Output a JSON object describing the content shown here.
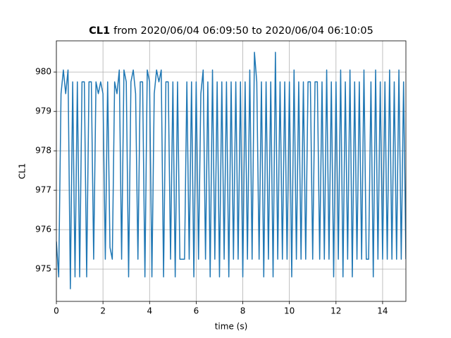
{
  "chart_data": {
    "type": "line",
    "title": {
      "bold": "CL1",
      "rest": "from 2020/06/04 06:09:50 to 2020/06/04 06:10:05"
    },
    "xlabel": "time (s)",
    "ylabel": "CL1",
    "xlim": [
      0,
      15
    ],
    "ylim": [
      974.18,
      980.79
    ],
    "xticks": [
      0,
      2,
      4,
      6,
      8,
      10,
      12,
      14
    ],
    "yticks": [
      975,
      976,
      977,
      978,
      979,
      980
    ],
    "grid": true,
    "series": [
      {
        "name": "CL1",
        "color": "#1f77b4",
        "x": [
          0,
          0.1,
          0.2,
          0.3,
          0.4,
          0.5,
          0.6,
          0.7,
          0.8,
          0.9,
          1,
          1.1,
          1.2,
          1.3,
          1.4,
          1.5,
          1.6,
          1.7,
          1.8,
          1.9,
          2,
          2.1,
          2.2,
          2.3,
          2.4,
          2.5,
          2.6,
          2.7,
          2.8,
          2.9,
          3,
          3.1,
          3.2,
          3.3,
          3.4,
          3.5,
          3.6,
          3.7,
          3.8,
          3.9,
          4,
          4.1,
          4.2,
          4.3,
          4.4,
          4.5,
          4.6,
          4.7,
          4.8,
          4.9,
          5,
          5.1,
          5.2,
          5.3,
          5.4,
          5.5,
          5.6,
          5.7,
          5.8,
          5.9,
          6,
          6.1,
          6.2,
          6.3,
          6.4,
          6.5,
          6.6,
          6.7,
          6.8,
          6.9,
          7,
          7.1,
          7.2,
          7.3,
          7.4,
          7.5,
          7.6,
          7.7,
          7.8,
          7.9,
          8,
          8.1,
          8.2,
          8.3,
          8.4,
          8.5,
          8.6,
          8.7,
          8.8,
          8.9,
          9,
          9.1,
          9.2,
          9.3,
          9.4,
          9.5,
          9.6,
          9.7,
          9.8,
          9.9,
          10,
          10.1,
          10.2,
          10.3,
          10.4,
          10.5,
          10.6,
          10.7,
          10.8,
          10.9,
          11,
          11.1,
          11.2,
          11.3,
          11.4,
          11.5,
          11.6,
          11.7,
          11.8,
          11.9,
          12,
          12.1,
          12.2,
          12.3,
          12.4,
          12.5,
          12.6,
          12.7,
          12.8,
          12.9,
          13,
          13.1,
          13.2,
          13.3,
          13.4,
          13.5,
          13.6,
          13.7,
          13.8,
          13.9,
          14,
          14.1,
          14.2,
          14.3,
          14.4,
          14.5,
          14.6,
          14.7,
          14.8,
          14.9,
          15
        ],
        "values": [
          975.7,
          974.8,
          979.45,
          980.05,
          979.45,
          980.05,
          974.5,
          979.75,
          974.8,
          979.75,
          974.8,
          979.75,
          979.75,
          974.8,
          979.75,
          979.75,
          975.25,
          979.75,
          979.45,
          979.75,
          979.45,
          975.25,
          979.75,
          975.55,
          975.25,
          979.75,
          979.45,
          980.05,
          975.25,
          980.05,
          979.75,
          974.8,
          979.75,
          980.05,
          979.45,
          975.25,
          979.75,
          979.75,
          974.8,
          980.05,
          979.75,
          974.8,
          979.45,
          980.05,
          979.75,
          980.05,
          974.8,
          979.75,
          979.75,
          975.25,
          979.75,
          974.8,
          979.75,
          975.25,
          975.25,
          975.25,
          979.75,
          975.25,
          979.75,
          974.8,
          979.75,
          975.25,
          979.45,
          980.05,
          975.25,
          979.75,
          974.8,
          980.05,
          975.25,
          979.75,
          974.8,
          979.75,
          975.25,
          979.75,
          974.8,
          979.75,
          975.25,
          979.75,
          975.25,
          979.75,
          974.8,
          979.75,
          975.25,
          980.05,
          975.25,
          980.5,
          979.75,
          975.25,
          979.75,
          974.8,
          979.75,
          975.25,
          979.75,
          974.8,
          980.5,
          975.25,
          979.75,
          975.25,
          979.75,
          975.25,
          979.75,
          974.8,
          980.05,
          975.25,
          979.75,
          975.25,
          979.75,
          975.25,
          979.75,
          979.75,
          975.25,
          979.75,
          979.75,
          975.25,
          979.75,
          975.25,
          980.05,
          975.25,
          979.75,
          974.8,
          979.75,
          975.25,
          980.05,
          974.8,
          979.75,
          975.25,
          980.05,
          974.8,
          979.75,
          975.25,
          979.75,
          975.25,
          980.05,
          975.25,
          975.25,
          979.75,
          974.8,
          980.05,
          975.25,
          979.75,
          975.25,
          979.75,
          975.25,
          980.05,
          975.25,
          979.75,
          975.25,
          980.05,
          975.25,
          979.75,
          975.25
        ]
      }
    ]
  }
}
